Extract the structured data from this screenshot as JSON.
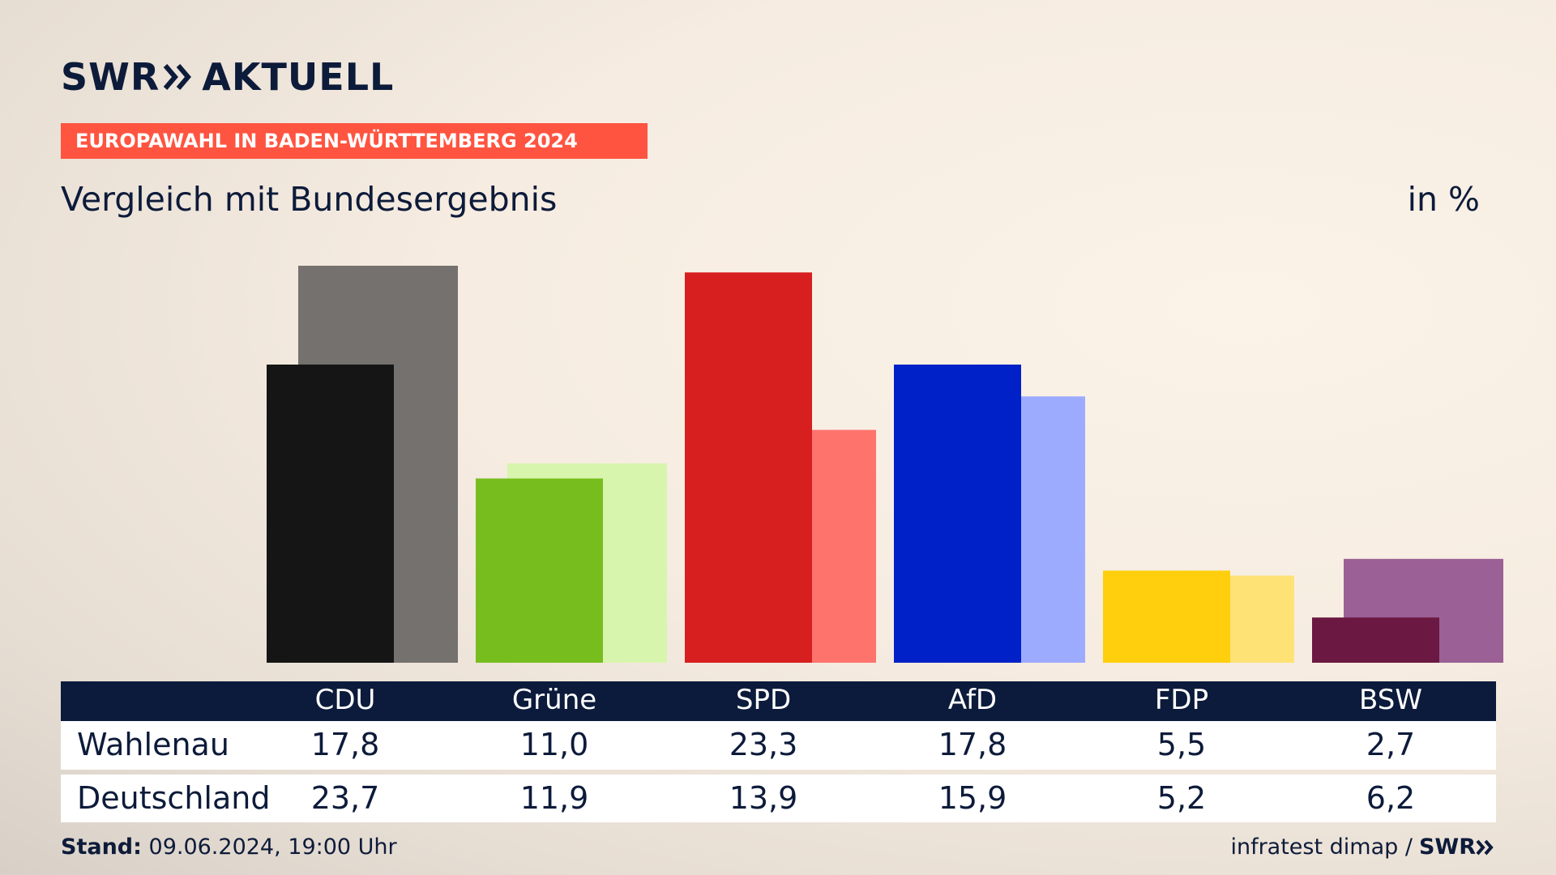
{
  "brand": {
    "logo_left": "SWR",
    "logo_right": "AKTUELL"
  },
  "banner": "EUROPAWAHL IN BADEN-WÜRTTEMBERG 2024",
  "subtitle": "Vergleich mit Bundesergebnis",
  "unit": "in %",
  "table": {
    "rows": [
      {
        "label": "Wahlenau"
      },
      {
        "label": "Deutschland"
      }
    ]
  },
  "footer": {
    "stand_label": "Stand:",
    "stand_value": "09.06.2024, 19:00 Uhr",
    "source": "infratest dimap /",
    "source_logo": "SWR"
  },
  "colors": {
    "banner": "#ff5440",
    "header_bg": "#0c1b3b",
    "text": "#0d1b3a"
  },
  "chart_data": {
    "type": "bar",
    "categories": [
      "CDU",
      "Grüne",
      "SPD",
      "AfD",
      "FDP",
      "BSW"
    ],
    "series": [
      {
        "name": "Wahlenau",
        "values": [
          17.8,
          11.0,
          23.3,
          17.8,
          5.5,
          2.7
        ],
        "colors": [
          "#151515",
          "#78bd1e",
          "#d71f20",
          "#0021c8",
          "#ffcf0d",
          "#6b1942"
        ]
      },
      {
        "name": "Deutschland",
        "values": [
          23.7,
          11.9,
          13.9,
          15.9,
          5.2,
          6.2
        ],
        "colors": [
          "#74716e",
          "#d8f5ad",
          "#ff736d",
          "#9dabff",
          "#ffe275",
          "#9b6095"
        ]
      }
    ],
    "value_labels": {
      "Wahlenau": [
        "17,8",
        "11,0",
        "23,3",
        "17,8",
        "5,5",
        "2,7"
      ],
      "Deutschland": [
        "23,7",
        "11,9",
        "13,9",
        "15,9",
        "5,2",
        "6,2"
      ]
    },
    "ylim": [
      0,
      23.7
    ],
    "grid": false,
    "legend": "table below chart"
  }
}
